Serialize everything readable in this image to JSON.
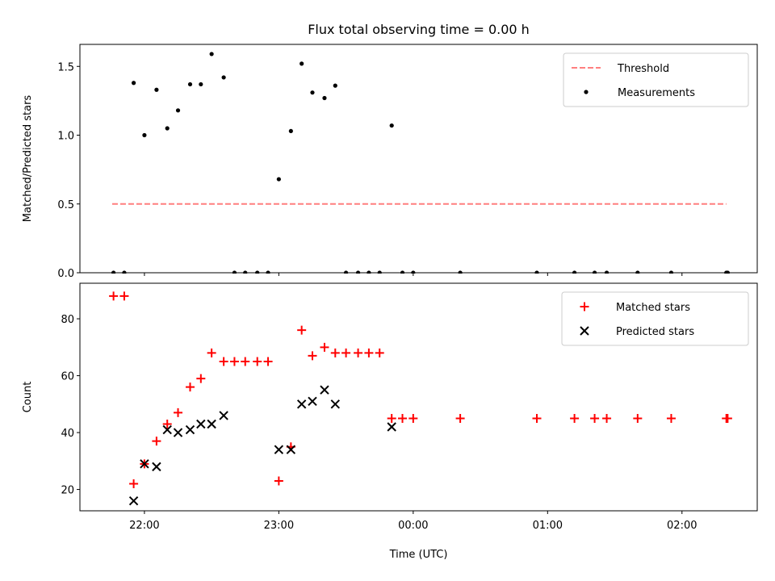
{
  "title": "Flux total observing time = 0.00 h",
  "chart_data": [
    {
      "type": "scatter",
      "ylabel": "Matched/Predicted stars",
      "xlabel": "",
      "ylim": [
        0,
        1.66
      ],
      "yticks": [
        0.0,
        0.5,
        1.0,
        1.5
      ],
      "ytick_labels": [
        "0.0",
        "0.5",
        "1.0",
        "1.5"
      ],
      "xlim": [
        21.52,
        26.56
      ],
      "xticks": [
        22,
        23,
        24,
        25,
        26
      ],
      "xtick_labels": [
        "",
        "",
        "",
        "",
        ""
      ],
      "threshold": {
        "name": "Threshold",
        "y": 0.5,
        "x": [
          21.76,
          26.33
        ],
        "color": "#ff7f7f"
      },
      "series": [
        {
          "name": "Measurements",
          "marker": "dot",
          "color": "#000000",
          "points": [
            [
              21.77,
              0.0
            ],
            [
              21.85,
              0.0
            ],
            [
              21.92,
              1.38
            ],
            [
              22.0,
              1.0
            ],
            [
              22.09,
              1.33
            ],
            [
              22.17,
              1.05
            ],
            [
              22.25,
              1.18
            ],
            [
              22.34,
              1.37
            ],
            [
              22.42,
              1.37
            ],
            [
              22.5,
              1.59
            ],
            [
              22.59,
              1.42
            ],
            [
              22.67,
              0.0
            ],
            [
              22.75,
              0.0
            ],
            [
              22.84,
              0.0
            ],
            [
              22.92,
              0.0
            ],
            [
              23.0,
              0.68
            ],
            [
              23.09,
              1.03
            ],
            [
              23.17,
              1.52
            ],
            [
              23.25,
              1.31
            ],
            [
              23.34,
              1.27
            ],
            [
              23.42,
              1.36
            ],
            [
              23.5,
              0.0
            ],
            [
              23.59,
              0.0
            ],
            [
              23.67,
              0.0
            ],
            [
              23.75,
              0.0
            ],
            [
              23.84,
              1.07
            ],
            [
              23.92,
              0.0
            ],
            [
              24.0,
              0.0
            ],
            [
              24.35,
              0.0
            ],
            [
              24.92,
              0.0
            ],
            [
              25.2,
              0.0
            ],
            [
              25.35,
              0.0
            ],
            [
              25.44,
              0.0
            ],
            [
              25.67,
              0.0
            ],
            [
              25.92,
              0.0
            ],
            [
              26.33,
              0.0
            ],
            [
              26.34,
              0.0
            ]
          ]
        }
      ],
      "legend_position": "top-right"
    },
    {
      "type": "scatter",
      "ylabel": "Count",
      "xlabel": "Time (UTC)",
      "ylim": [
        12.5,
        92.5
      ],
      "yticks": [
        20,
        40,
        60,
        80
      ],
      "ytick_labels": [
        "20",
        "40",
        "60",
        "80"
      ],
      "xlim": [
        21.52,
        26.56
      ],
      "xticks": [
        22,
        23,
        24,
        25,
        26
      ],
      "xtick_labels": [
        "22:00",
        "23:00",
        "00:00",
        "01:00",
        "02:00"
      ],
      "series": [
        {
          "name": "Matched stars",
          "marker": "plus",
          "color": "#ff0000",
          "points": [
            [
              21.77,
              88
            ],
            [
              21.85,
              88
            ],
            [
              21.92,
              22
            ],
            [
              22.0,
              29
            ],
            [
              22.09,
              37
            ],
            [
              22.17,
              43
            ],
            [
              22.25,
              47
            ],
            [
              22.34,
              56
            ],
            [
              22.42,
              59
            ],
            [
              22.5,
              68
            ],
            [
              22.59,
              65
            ],
            [
              22.67,
              65
            ],
            [
              22.75,
              65
            ],
            [
              22.84,
              65
            ],
            [
              22.92,
              65
            ],
            [
              23.0,
              23
            ],
            [
              23.09,
              35
            ],
            [
              23.17,
              76
            ],
            [
              23.25,
              67
            ],
            [
              23.34,
              70
            ],
            [
              23.42,
              68
            ],
            [
              23.5,
              68
            ],
            [
              23.59,
              68
            ],
            [
              23.67,
              68
            ],
            [
              23.75,
              68
            ],
            [
              23.84,
              45
            ],
            [
              23.92,
              45
            ],
            [
              24.0,
              45
            ],
            [
              24.35,
              45
            ],
            [
              24.92,
              45
            ],
            [
              25.2,
              45
            ],
            [
              25.35,
              45
            ],
            [
              25.44,
              45
            ],
            [
              25.67,
              45
            ],
            [
              25.92,
              45
            ],
            [
              26.33,
              45
            ],
            [
              26.34,
              45
            ]
          ]
        },
        {
          "name": "Predicted stars",
          "marker": "x",
          "color": "#000000",
          "points": [
            [
              21.92,
              16
            ],
            [
              22.0,
              29
            ],
            [
              22.09,
              28
            ],
            [
              22.17,
              41
            ],
            [
              22.25,
              40
            ],
            [
              22.34,
              41
            ],
            [
              22.42,
              43
            ],
            [
              22.5,
              43
            ],
            [
              22.59,
              46
            ],
            [
              23.0,
              34
            ],
            [
              23.09,
              34
            ],
            [
              23.17,
              50
            ],
            [
              23.25,
              51
            ],
            [
              23.34,
              55
            ],
            [
              23.42,
              50
            ],
            [
              23.84,
              42
            ]
          ]
        }
      ],
      "legend_position": "top-right"
    }
  ]
}
